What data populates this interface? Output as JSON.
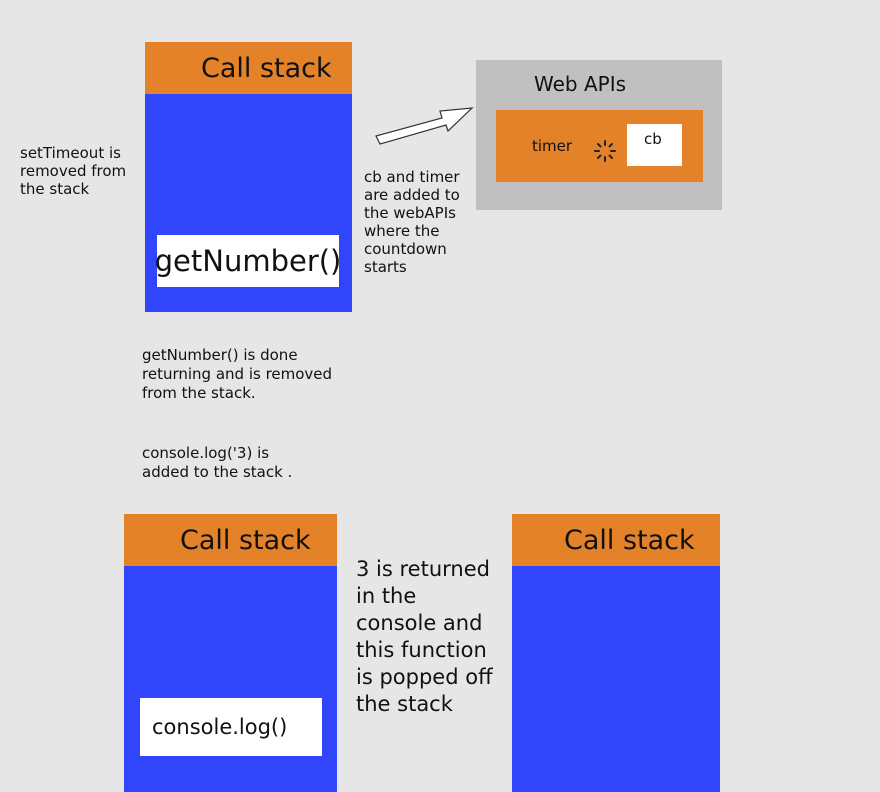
{
  "top_stack": {
    "header": "Call stack",
    "item": "getNumber()"
  },
  "left_note": "setTimeout is\nremoved from\nthe stack",
  "middle_note": "cb and timer\nare added to\nthe webAPIs\nwhere the\ncountdown\nstarts",
  "web_apis": {
    "title": "Web APIs",
    "timer_label": "timer",
    "cb_label": "cb"
  },
  "center_note_1": "getNumber() is done\nreturning and is removed\nfrom the stack.",
  "center_note_2": "console.log('3) is\nadded to the stack .",
  "bottom_left_stack": {
    "header": "Call stack",
    "item": "console.log()"
  },
  "bottom_note": "3 is returned\nin the\nconsole and\nthis function\nis popped off\nthe stack",
  "bottom_right_stack": {
    "header": "Call stack"
  },
  "colors": {
    "background": "#e6e6e6",
    "stack_blue": "#3146fb",
    "header_orange": "#e4822a",
    "webapi_gray": "#c0c0c0"
  },
  "icons": [
    "arrow-right-up-icon",
    "loading-spinner-icon"
  ]
}
